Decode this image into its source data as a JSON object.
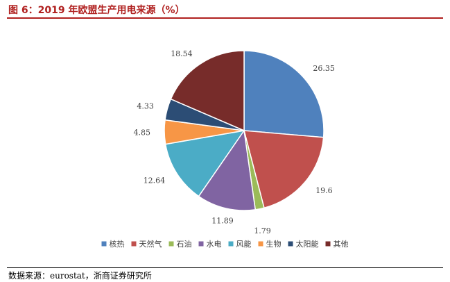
{
  "figure": {
    "title": "图 6：2019 年欧盟生产用电来源（%）",
    "source": "数据来源：eurostat，浙商证券研究所"
  },
  "chart_data": {
    "type": "pie",
    "title": "",
    "legend_position": "bottom",
    "slices": [
      {
        "label": "核热",
        "value": 26.35,
        "color": "#4f81bd"
      },
      {
        "label": "天然气",
        "value": 19.6,
        "color": "#c0504d"
      },
      {
        "label": "石油",
        "value": 1.79,
        "color": "#9bbb59"
      },
      {
        "label": "水电",
        "value": 11.89,
        "color": "#8064a2"
      },
      {
        "label": "风能",
        "value": 12.64,
        "color": "#4bacc6"
      },
      {
        "label": "生物",
        "value": 4.85,
        "color": "#f79646"
      },
      {
        "label": "太阳能",
        "value": 4.33,
        "color": "#2c4d75"
      },
      {
        "label": "其他",
        "value": 18.54,
        "color": "#772c2a"
      }
    ]
  }
}
